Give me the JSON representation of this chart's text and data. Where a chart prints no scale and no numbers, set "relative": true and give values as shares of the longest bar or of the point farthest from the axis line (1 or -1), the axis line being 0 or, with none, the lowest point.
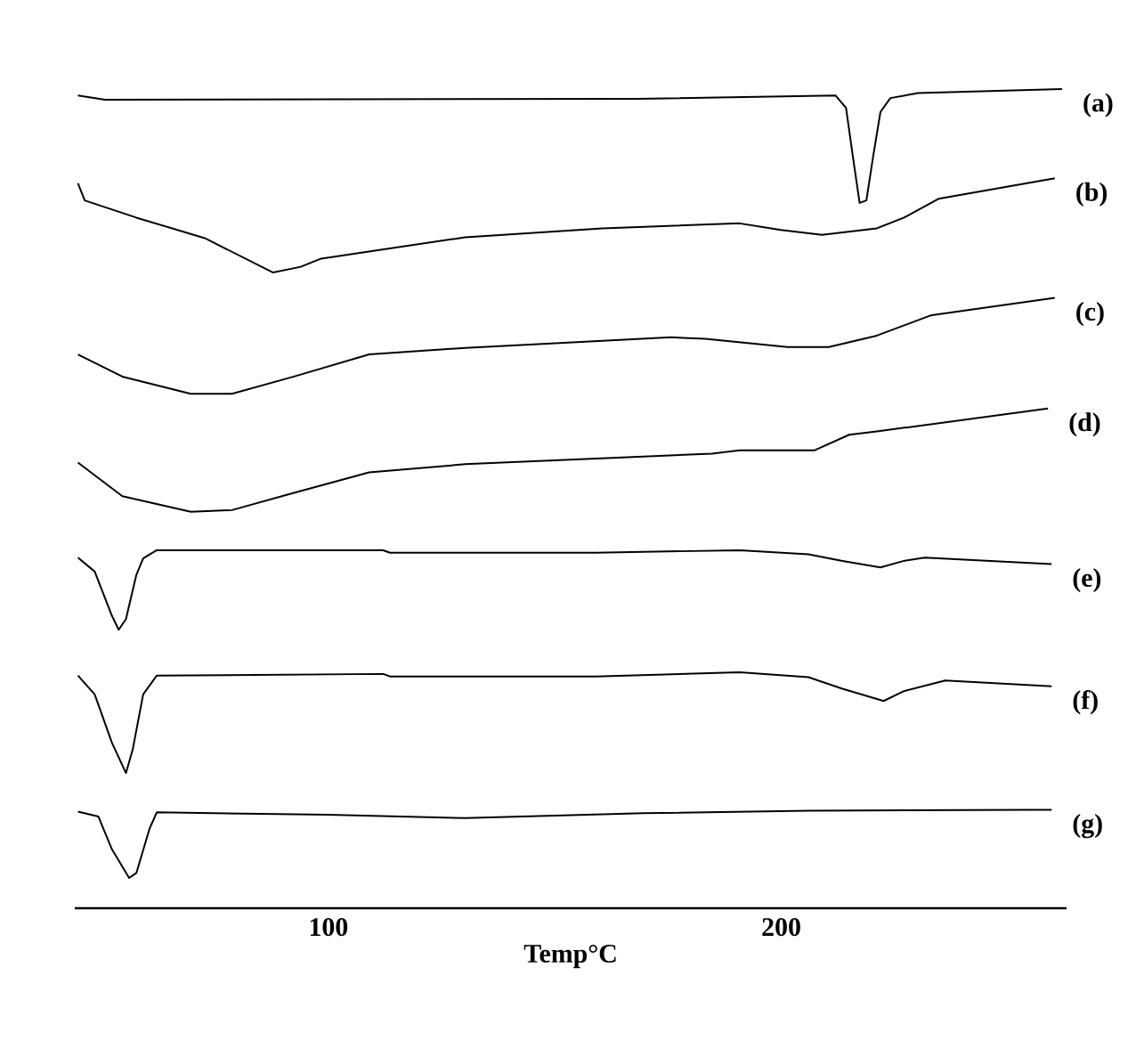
{
  "chart_data": {
    "type": "line",
    "relative": true,
    "xlabel": "Temp°C",
    "xlim": [
      44,
      263
    ],
    "xticks": [
      100,
      200
    ],
    "legend": false,
    "grid": false,
    "marker": "none",
    "line_style": "solid",
    "series": [
      {
        "name": "(a)",
        "color": "#000000",
        "x": [
          44.7,
          50.7,
          168.1,
          212.0,
          214.3,
          215.8,
          217.3,
          218.8,
          220.3,
          221.9,
          224.1,
          230.2,
          262.0
        ],
        "values": [
          0.992,
          0.987,
          0.988,
          0.992,
          0.977,
          0.918,
          0.861,
          0.864,
          0.918,
          0.972,
          0.989,
          0.995,
          1.0
        ]
      },
      {
        "name": "(b)",
        "color": "#000000",
        "x": [
          44.7,
          46.2,
          57.6,
          72.7,
          87.8,
          93.9,
          98.4,
          130.2,
          160.5,
          190.8,
          199.9,
          209.0,
          221.1,
          227.1,
          234.7,
          260.4
        ],
        "values": [
          0.885,
          0.864,
          0.843,
          0.818,
          0.776,
          0.783,
          0.793,
          0.819,
          0.83,
          0.836,
          0.828,
          0.822,
          0.83,
          0.843,
          0.866,
          0.891
        ]
      },
      {
        "name": "(c)",
        "color": "#000000",
        "x": [
          44.7,
          54.5,
          69.6,
          78.7,
          92.4,
          109.0,
          130.2,
          175.7,
          183.2,
          201.4,
          210.5,
          221.1,
          233.2,
          260.4
        ],
        "values": [
          0.676,
          0.649,
          0.628,
          0.628,
          0.649,
          0.676,
          0.684,
          0.697,
          0.695,
          0.685,
          0.685,
          0.699,
          0.724,
          0.745
        ]
      },
      {
        "name": "(d)",
        "color": "#000000",
        "x": [
          44.7,
          54.5,
          69.6,
          78.7,
          92.4,
          109.0,
          130.2,
          184.7,
          190.8,
          207.4,
          215.0,
          221.1,
          258.9
        ],
        "values": [
          0.544,
          0.503,
          0.484,
          0.486,
          0.507,
          0.532,
          0.542,
          0.555,
          0.559,
          0.559,
          0.578,
          0.582,
          0.61
        ]
      },
      {
        "name": "(e)",
        "color": "#000000",
        "x": [
          44.7,
          48.4,
          52.2,
          53.7,
          55.3,
          57.6,
          59.1,
          62.1,
          112.1,
          113.6,
          159.0,
          190.8,
          206.0,
          213.5,
          221.9,
          227.1,
          231.7,
          259.7
        ],
        "values": [
          0.428,
          0.411,
          0.357,
          0.34,
          0.353,
          0.407,
          0.427,
          0.437,
          0.437,
          0.434,
          0.434,
          0.437,
          0.432,
          0.424,
          0.416,
          0.424,
          0.428,
          0.42
        ]
      },
      {
        "name": "(f)",
        "color": "#000000",
        "x": [
          44.7,
          48.4,
          52.2,
          55.3,
          56.8,
          59.1,
          62.1,
          112.1,
          113.6,
          159.0,
          190.8,
          206.0,
          213.5,
          222.6,
          227.1,
          236.2,
          259.7
        ],
        "values": [
          0.284,
          0.261,
          0.202,
          0.165,
          0.194,
          0.261,
          0.284,
          0.286,
          0.283,
          0.283,
          0.288,
          0.282,
          0.268,
          0.253,
          0.265,
          0.278,
          0.271
        ]
      },
      {
        "name": "(g)",
        "color": "#000000",
        "x": [
          44.7,
          49.2,
          52.2,
          56.0,
          57.6,
          60.5,
          62.1,
          99.9,
          130.2,
          169.6,
          206.0,
          254.3,
          259.7
        ],
        "values": [
          0.118,
          0.112,
          0.072,
          0.037,
          0.043,
          0.097,
          0.117,
          0.114,
          0.11,
          0.116,
          0.119,
          0.12,
          0.12
        ]
      }
    ]
  }
}
